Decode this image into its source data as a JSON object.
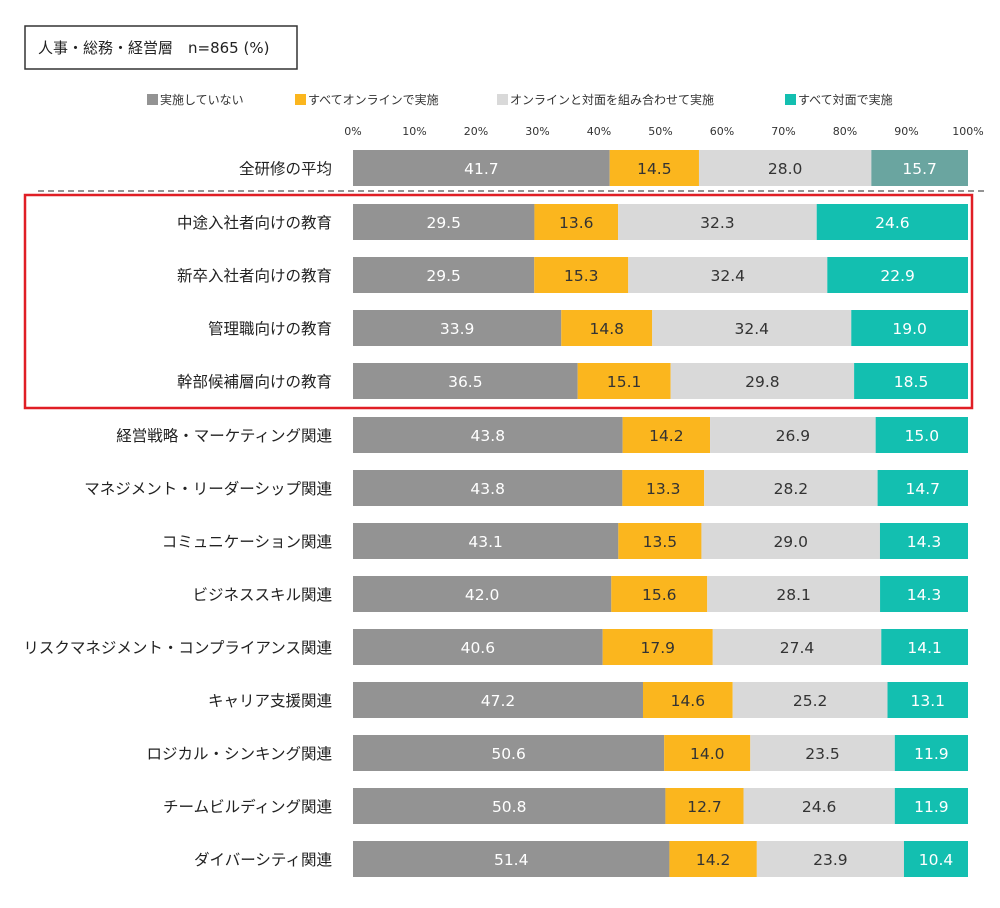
{
  "chart_data": {
    "type": "bar",
    "orientation": "horizontal",
    "stacked": true,
    "title": "人事・総務・経営層　n=865 (%)",
    "xlim": [
      0,
      100
    ],
    "x_ticks": [
      "0%",
      "10%",
      "20%",
      "30%",
      "40%",
      "50%",
      "60%",
      "70%",
      "80%",
      "90%",
      "100%"
    ],
    "grid": false,
    "legend_position": "top",
    "highlight": [
      "中途入社者向けの教育",
      "新卒入社者向けの教育",
      "管理職向けの教育",
      "幹部候補層向けの教育"
    ],
    "highlight_color": "#e01e25",
    "categories": [
      "全研修の平均",
      "中途入社者向けの教育",
      "新卒入社者向けの教育",
      "管理職向けの教育",
      "幹部候補層向けの教育",
      "経営戦略・マーケティング関連",
      "マネジメント・リーダーシップ関連",
      "コミュニケーション関連",
      "ビジネススキル関連",
      "リスクマネジメント・コンプライアンス関連",
      "キャリア支援関連",
      "ロジカル・シンキング関連",
      "チームビルディング関連",
      "ダイバーシティ関連"
    ],
    "series": [
      {
        "name": "実施していない",
        "color": "#939393",
        "label_color": "#ffffff",
        "values": [
          41.7,
          29.5,
          29.5,
          33.9,
          36.5,
          43.8,
          43.8,
          43.1,
          42.0,
          40.6,
          47.2,
          50.6,
          50.8,
          51.4
        ]
      },
      {
        "name": "すべてオンラインで実施",
        "color": "#fbb61e",
        "label_color": "#333333",
        "values": [
          14.5,
          13.6,
          15.3,
          14.8,
          15.1,
          14.2,
          13.3,
          13.5,
          15.6,
          17.9,
          14.6,
          14.0,
          12.7,
          14.2
        ]
      },
      {
        "name": "オンラインと対面を組み合わせて実施",
        "color": "#d9d9d9",
        "label_color": "#333333",
        "values": [
          28.0,
          32.3,
          32.4,
          32.4,
          29.8,
          26.9,
          28.2,
          29.0,
          28.1,
          27.4,
          25.2,
          23.5,
          24.6,
          23.9
        ]
      },
      {
        "name": "すべて対面で実施",
        "color": "#13bfb0",
        "label_color": "#ffffff",
        "values": [
          15.7,
          24.6,
          22.9,
          19.0,
          18.5,
          15.0,
          14.7,
          14.3,
          14.3,
          14.1,
          13.1,
          11.9,
          11.9,
          10.4
        ],
        "first_row_color": "#6aa5a0"
      }
    ]
  }
}
